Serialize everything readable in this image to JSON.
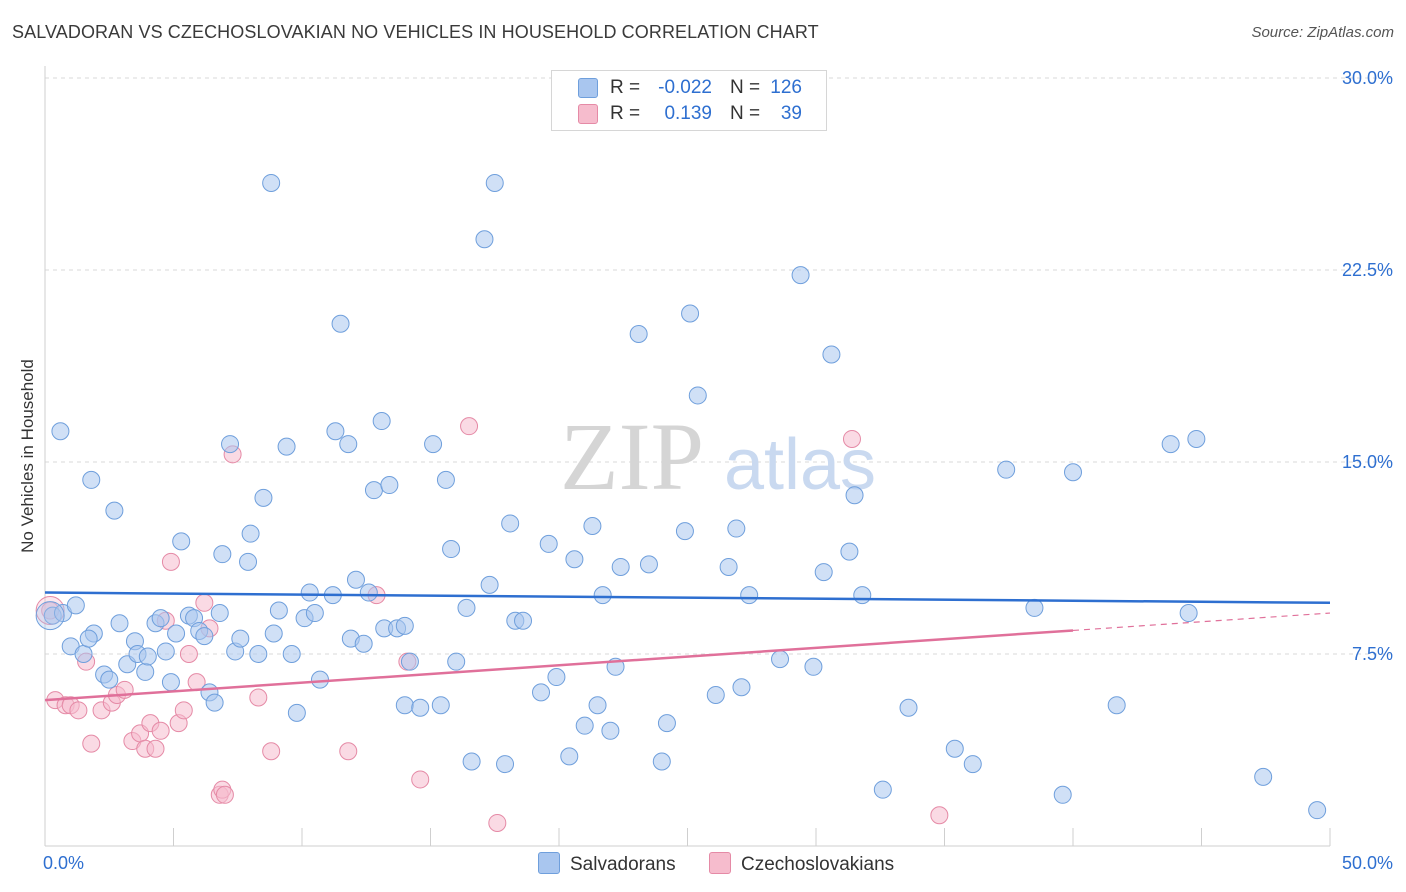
{
  "title": "SALVADORAN VS CZECHOSLOVAKIAN NO VEHICLES IN HOUSEHOLD CORRELATION CHART",
  "source": "Source: ZipAtlas.com",
  "watermark": {
    "zip": "ZIP",
    "atlas": "atlas"
  },
  "legend": {
    "rows": [
      {
        "r_label": "R =",
        "r_value": "-0.022",
        "n_label": "N =",
        "n_value": "126",
        "color": "#a9c6ef",
        "border": "#6f9fdc"
      },
      {
        "r_label": "R =",
        "r_value": "0.139",
        "n_label": "N =",
        "n_value": "39",
        "color": "#f6bccd",
        "border": "#e58aa6"
      }
    ]
  },
  "bottom_legend": [
    {
      "label": "Salvadorans",
      "color": "#a9c6ef",
      "border": "#6f9fdc"
    },
    {
      "label": "Czechoslovakians",
      "color": "#f6bccd",
      "border": "#e58aa6"
    }
  ],
  "colors": {
    "blue_fill": "#a9c6ef",
    "blue_stroke": "#6f9fdc",
    "blue_line": "#2e6fd0",
    "pink_fill": "#f6bccd",
    "pink_stroke": "#e58aa6",
    "pink_line": "#e0709a",
    "grid": "#d9d9d9",
    "tick_text": "#2e6fd0"
  },
  "chart_data": {
    "type": "scatter",
    "title": "SALVADORAN VS CZECHOSLOVAKIAN NO VEHICLES IN HOUSEHOLD CORRELATION CHART",
    "xlabel": "",
    "ylabel": "No Vehicles in Household",
    "xlim": [
      0,
      50
    ],
    "ylim": [
      0,
      30
    ],
    "x_tick_labels": [
      "0.0%",
      "50.0%"
    ],
    "y_ticks": [
      7.5,
      15.0,
      22.5,
      30.0
    ],
    "y_tick_labels": [
      "7.5%",
      "15.0%",
      "22.5%",
      "30.0%"
    ],
    "grid": true,
    "series": [
      {
        "name": "Salvadorans",
        "r": -0.022,
        "n": 126,
        "trend": {
          "x": [
            0,
            50
          ],
          "y": [
            9.9,
            9.5
          ],
          "dashed_from": null
        },
        "points": [
          [
            0.3,
            9.0
          ],
          [
            0.7,
            9.1
          ],
          [
            1.2,
            9.4
          ],
          [
            0.6,
            16.2
          ],
          [
            1.8,
            14.3
          ],
          [
            2.7,
            13.1
          ],
          [
            1.9,
            8.3
          ],
          [
            1.0,
            7.8
          ],
          [
            1.5,
            7.5
          ],
          [
            2.9,
            8.7
          ],
          [
            1.7,
            8.1
          ],
          [
            2.3,
            6.7
          ],
          [
            2.5,
            6.5
          ],
          [
            3.2,
            7.1
          ],
          [
            3.5,
            8.0
          ],
          [
            3.6,
            7.5
          ],
          [
            3.9,
            6.8
          ],
          [
            4.0,
            7.4
          ],
          [
            4.3,
            8.7
          ],
          [
            4.5,
            8.9
          ],
          [
            4.7,
            7.6
          ],
          [
            4.9,
            6.4
          ],
          [
            5.1,
            8.3
          ],
          [
            5.3,
            11.9
          ],
          [
            5.6,
            9.0
          ],
          [
            5.8,
            8.9
          ],
          [
            6.0,
            8.4
          ],
          [
            6.2,
            8.2
          ],
          [
            6.4,
            6.0
          ],
          [
            6.6,
            5.6
          ],
          [
            6.8,
            9.1
          ],
          [
            6.9,
            11.4
          ],
          [
            7.2,
            15.7
          ],
          [
            7.4,
            7.6
          ],
          [
            7.6,
            8.1
          ],
          [
            7.9,
            11.1
          ],
          [
            8.0,
            12.2
          ],
          [
            8.3,
            7.5
          ],
          [
            8.5,
            13.6
          ],
          [
            8.8,
            25.9
          ],
          [
            8.9,
            8.3
          ],
          [
            9.1,
            9.2
          ],
          [
            9.4,
            15.6
          ],
          [
            9.6,
            7.5
          ],
          [
            9.8,
            5.2
          ],
          [
            10.1,
            8.9
          ],
          [
            10.3,
            9.9
          ],
          [
            10.5,
            9.1
          ],
          [
            10.7,
            6.5
          ],
          [
            11.2,
            9.8
          ],
          [
            11.3,
            16.2
          ],
          [
            11.5,
            20.4
          ],
          [
            11.8,
            15.7
          ],
          [
            11.9,
            8.1
          ],
          [
            12.1,
            10.4
          ],
          [
            12.4,
            7.9
          ],
          [
            12.6,
            9.9
          ],
          [
            12.8,
            13.9
          ],
          [
            13.1,
            16.6
          ],
          [
            13.2,
            8.5
          ],
          [
            13.4,
            14.1
          ],
          [
            13.7,
            8.5
          ],
          [
            14.0,
            8.6
          ],
          [
            14.2,
            7.2
          ],
          [
            14.0,
            5.5
          ],
          [
            14.6,
            5.4
          ],
          [
            15.1,
            15.7
          ],
          [
            15.4,
            5.5
          ],
          [
            15.6,
            14.3
          ],
          [
            15.8,
            11.6
          ],
          [
            16.0,
            7.2
          ],
          [
            16.4,
            9.3
          ],
          [
            16.6,
            3.3
          ],
          [
            17.1,
            23.7
          ],
          [
            17.3,
            10.2
          ],
          [
            17.5,
            25.9
          ],
          [
            17.9,
            3.2
          ],
          [
            18.1,
            12.6
          ],
          [
            18.3,
            8.8
          ],
          [
            18.6,
            8.8
          ],
          [
            19.3,
            6.0
          ],
          [
            19.6,
            11.8
          ],
          [
            19.9,
            6.6
          ],
          [
            20.4,
            3.5
          ],
          [
            20.6,
            11.2
          ],
          [
            21.0,
            4.7
          ],
          [
            21.3,
            12.5
          ],
          [
            21.5,
            5.5
          ],
          [
            21.7,
            9.8
          ],
          [
            22.0,
            4.5
          ],
          [
            22.2,
            7.0
          ],
          [
            22.4,
            10.9
          ],
          [
            23.1,
            20.0
          ],
          [
            23.5,
            11.0
          ],
          [
            24.0,
            3.3
          ],
          [
            24.2,
            4.8
          ],
          [
            24.9,
            12.3
          ],
          [
            25.1,
            20.8
          ],
          [
            25.4,
            17.6
          ],
          [
            26.1,
            5.9
          ],
          [
            26.6,
            10.9
          ],
          [
            26.9,
            12.4
          ],
          [
            27.1,
            6.2
          ],
          [
            27.4,
            9.8
          ],
          [
            28.6,
            7.3
          ],
          [
            29.4,
            22.3
          ],
          [
            29.9,
            7.0
          ],
          [
            30.3,
            10.7
          ],
          [
            30.6,
            19.2
          ],
          [
            31.3,
            11.5
          ],
          [
            31.5,
            13.7
          ],
          [
            31.8,
            9.8
          ],
          [
            32.6,
            2.2
          ],
          [
            33.6,
            5.4
          ],
          [
            35.4,
            3.8
          ],
          [
            36.1,
            3.2
          ],
          [
            37.4,
            14.7
          ],
          [
            38.5,
            9.3
          ],
          [
            39.6,
            2.0
          ],
          [
            40.0,
            14.6
          ],
          [
            41.7,
            5.5
          ],
          [
            43.8,
            15.7
          ],
          [
            44.5,
            9.1
          ],
          [
            44.8,
            15.9
          ],
          [
            47.4,
            2.7
          ],
          [
            49.5,
            1.4
          ]
        ]
      },
      {
        "name": "Czechoslovakians",
        "r": 0.139,
        "n": 39,
        "trend": {
          "x": [
            0,
            50
          ],
          "y": [
            5.7,
            9.1
          ],
          "dashed_from": 40
        },
        "points": [
          [
            0.2,
            9.2
          ],
          [
            0.4,
            5.7
          ],
          [
            0.8,
            5.5
          ],
          [
            1.0,
            5.5
          ],
          [
            1.3,
            5.3
          ],
          [
            1.6,
            7.2
          ],
          [
            1.8,
            4.0
          ],
          [
            2.2,
            5.3
          ],
          [
            2.6,
            5.6
          ],
          [
            2.8,
            5.9
          ],
          [
            3.1,
            6.1
          ],
          [
            3.4,
            4.1
          ],
          [
            3.7,
            4.4
          ],
          [
            3.9,
            3.8
          ],
          [
            4.1,
            4.8
          ],
          [
            4.3,
            3.8
          ],
          [
            4.5,
            4.5
          ],
          [
            4.7,
            8.8
          ],
          [
            4.9,
            11.1
          ],
          [
            5.2,
            4.8
          ],
          [
            5.4,
            5.3
          ],
          [
            5.6,
            7.5
          ],
          [
            5.9,
            6.4
          ],
          [
            6.2,
            9.5
          ],
          [
            6.4,
            8.5
          ],
          [
            6.8,
            2.0
          ],
          [
            6.9,
            2.2
          ],
          [
            7.0,
            2.0
          ],
          [
            7.3,
            15.3
          ],
          [
            8.3,
            5.8
          ],
          [
            8.8,
            3.7
          ],
          [
            11.8,
            3.7
          ],
          [
            12.9,
            9.8
          ],
          [
            14.1,
            7.2
          ],
          [
            14.6,
            2.6
          ],
          [
            16.5,
            16.4
          ],
          [
            17.6,
            0.9
          ],
          [
            31.4,
            15.9
          ],
          [
            34.8,
            1.2
          ]
        ]
      }
    ]
  }
}
